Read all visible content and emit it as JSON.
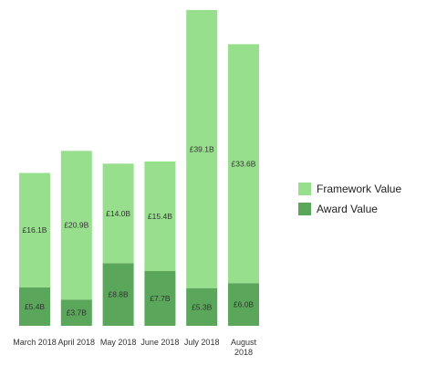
{
  "chart_data": {
    "type": "bar",
    "stacked": true,
    "categories": [
      "March 2018",
      "April 2018",
      "May 2018",
      "June 2018",
      "July 2018",
      "August 2018"
    ],
    "series": [
      {
        "name": "Award Value",
        "color": "#5aa65a",
        "values": [
          5.4,
          3.7,
          8.8,
          7.7,
          5.3,
          6.0
        ],
        "labels": [
          "£5.4B",
          "£3.7B",
          "£8.8B",
          "£7.7B",
          "£5.3B",
          "£6.0B"
        ]
      },
      {
        "name": "Framework Value",
        "color": "#97df8d",
        "values": [
          16.1,
          20.9,
          14.0,
          15.4,
          39.1,
          33.6
        ],
        "labels": [
          "£16.1B",
          "£20.9B",
          "£14.0B",
          "£15.4B",
          "£39.1B",
          "£33.6B"
        ]
      }
    ],
    "legend": {
      "position": "right",
      "items": [
        {
          "name": "Framework Value",
          "color": "#97df8d"
        },
        {
          "name": "Award Value",
          "color": "#5aa65a"
        }
      ]
    },
    "ylim": [
      0,
      44.4
    ],
    "grid": false,
    "title": "",
    "xlabel": "",
    "ylabel": ""
  }
}
